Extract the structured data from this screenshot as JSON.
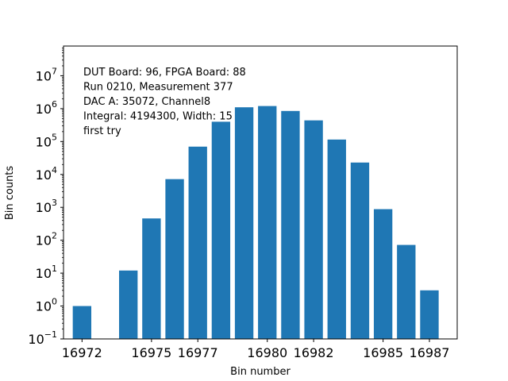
{
  "chart_data": {
    "type": "bar",
    "xlabel": "Bin number",
    "ylabel": "Bin counts",
    "yscale": "log",
    "ylim": [
      0.1,
      80000000
    ],
    "xlim": [
      16971.2,
      16988.2
    ],
    "grid": false,
    "bar_color": "#1f77b4",
    "x_ticks": [
      16972,
      16975,
      16977,
      16980,
      16982,
      16985,
      16987
    ],
    "y_ticks": [
      {
        "value": 0.1,
        "base": "10",
        "exp": "−1"
      },
      {
        "value": 1,
        "base": "10",
        "exp": "0"
      },
      {
        "value": 10,
        "base": "10",
        "exp": "1"
      },
      {
        "value": 100,
        "base": "10",
        "exp": "2"
      },
      {
        "value": 1000,
        "base": "10",
        "exp": "3"
      },
      {
        "value": 10000,
        "base": "10",
        "exp": "4"
      },
      {
        "value": 100000,
        "base": "10",
        "exp": "5"
      },
      {
        "value": 1000000,
        "base": "10",
        "exp": "6"
      },
      {
        "value": 10000000,
        "base": "10",
        "exp": "7"
      }
    ],
    "x": [
      16972,
      16974,
      16975,
      16976,
      16977,
      16978,
      16979,
      16980,
      16981,
      16982,
      16983,
      16984,
      16985,
      16986,
      16987
    ],
    "values": [
      1,
      12,
      460,
      7200,
      70000,
      400000,
      1100000,
      1200000,
      850000,
      440000,
      115000,
      23000,
      880,
      72,
      3
    ],
    "annotations": [
      "DUT Board: 96, FPGA Board: 88",
      "Run 0210, Measurement 377",
      "DAC A: 35072, Channel8",
      "Integral: 4194300, Width: 15",
      "first try"
    ]
  }
}
